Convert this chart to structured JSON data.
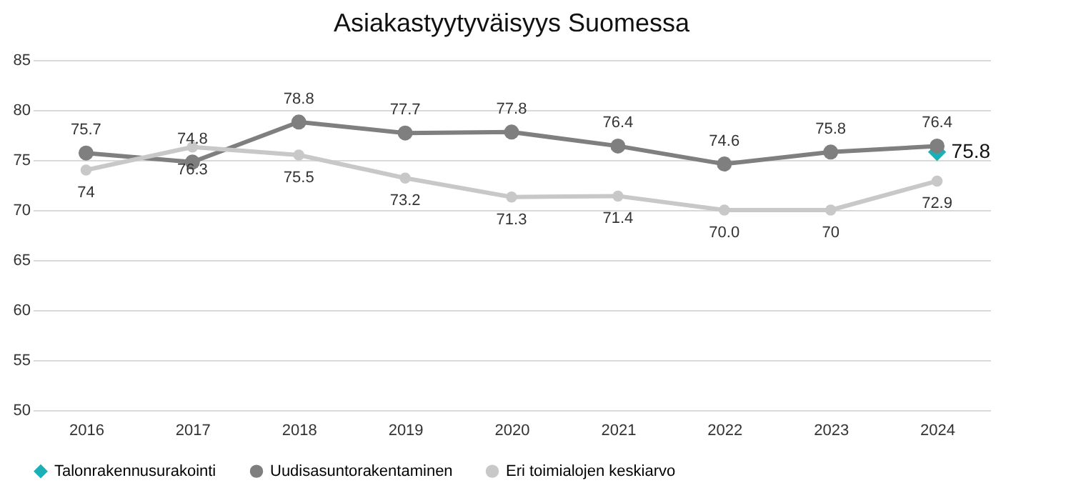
{
  "chart_data": {
    "type": "line",
    "title": "Asiakastyytyväisyys Suomessa",
    "categories": [
      "2016",
      "2017",
      "2018",
      "2019",
      "2020",
      "2021",
      "2022",
      "2023",
      "2024"
    ],
    "series": [
      {
        "name": "Talonrakennusurakointi",
        "type": "scatter",
        "marker": "diamond",
        "color": "#1ab0b8",
        "values": [
          null,
          null,
          null,
          null,
          null,
          null,
          null,
          null,
          75.8
        ],
        "value_labels": [
          null,
          null,
          null,
          null,
          null,
          null,
          null,
          null,
          "75.8"
        ]
      },
      {
        "name": "Uudisasuntorakentaminen",
        "color": "#7f7f7f",
        "values": [
          75.7,
          74.8,
          78.8,
          77.7,
          77.8,
          76.4,
          74.6,
          75.8,
          76.4
        ],
        "value_labels": [
          "75.7",
          "74.8",
          "78.8",
          "77.7",
          "77.8",
          "76.4",
          "74.6",
          "75.8",
          "76.4"
        ]
      },
      {
        "name": "Eri toimialojen keskiarvo",
        "color": "#c8c8c8",
        "values": [
          74,
          76.3,
          75.5,
          73.2,
          71.3,
          71.4,
          70,
          70,
          72.9
        ],
        "value_labels": [
          "74",
          "76.3",
          "75.5",
          "73.2",
          "71.3",
          "71.4",
          "70.0",
          "70",
          "72.9"
        ]
      }
    ],
    "ylim": [
      50,
      85
    ],
    "yticks": [
      50,
      55,
      60,
      65,
      70,
      75,
      80,
      85
    ],
    "grid": "y",
    "legend": "bottom",
    "marker": "circle",
    "line_style": "solid"
  }
}
